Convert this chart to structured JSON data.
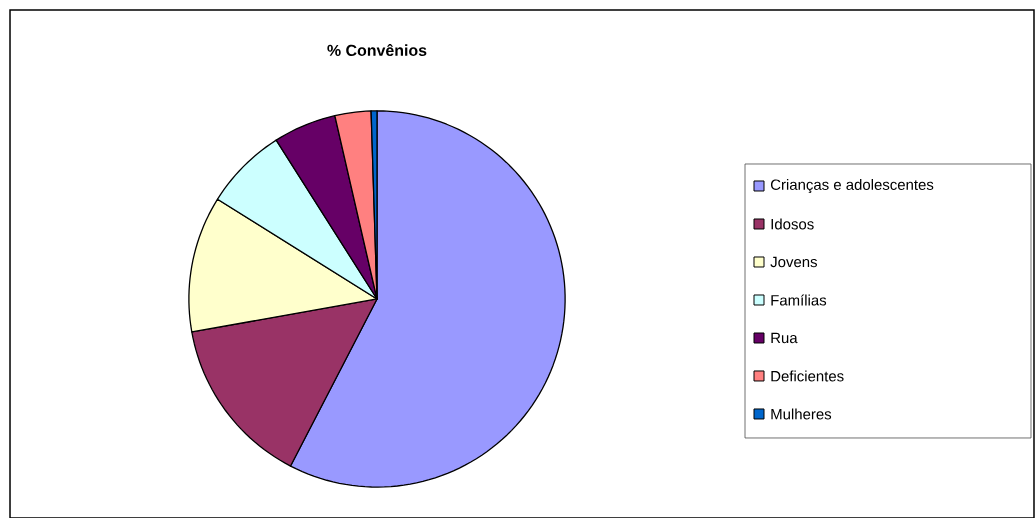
{
  "chart_data": {
    "type": "pie",
    "title": "% Convênios",
    "categories": [
      "Crianças e adolescentes",
      "Idosos",
      "Jovens",
      "Famílias",
      "Rua",
      "Deficientes",
      "Mulheres"
    ],
    "values": [
      57.6,
      14.6,
      11.7,
      7.1,
      5.4,
      3.1,
      0.5
    ],
    "colors": [
      "#9999ff",
      "#993366",
      "#ffffcc",
      "#ccffff",
      "#660066",
      "#ff8080",
      "#0066cc"
    ],
    "legend": "right"
  }
}
